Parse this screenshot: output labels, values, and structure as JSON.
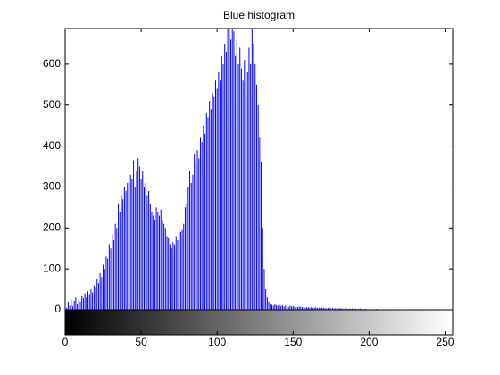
{
  "chart_data": {
    "type": "stem",
    "title": "Blue histogram",
    "color": "#0000ff",
    "x": [
      0,
      1,
      2,
      3,
      4,
      5,
      6,
      7,
      8,
      9,
      10,
      11,
      12,
      13,
      14,
      15,
      16,
      17,
      18,
      19,
      20,
      21,
      22,
      23,
      24,
      25,
      26,
      27,
      28,
      29,
      30,
      31,
      32,
      33,
      34,
      35,
      36,
      37,
      38,
      39,
      40,
      41,
      42,
      43,
      44,
      45,
      46,
      47,
      48,
      49,
      50,
      51,
      52,
      53,
      54,
      55,
      56,
      57,
      58,
      59,
      60,
      61,
      62,
      63,
      64,
      65,
      66,
      67,
      68,
      69,
      70,
      71,
      72,
      73,
      74,
      75,
      76,
      77,
      78,
      79,
      80,
      81,
      82,
      83,
      84,
      85,
      86,
      87,
      88,
      89,
      90,
      91,
      92,
      93,
      94,
      95,
      96,
      97,
      98,
      99,
      100,
      101,
      102,
      103,
      104,
      105,
      106,
      107,
      108,
      109,
      110,
      111,
      112,
      113,
      114,
      115,
      116,
      117,
      118,
      119,
      120,
      121,
      122,
      123,
      124,
      125,
      126,
      127,
      128,
      129,
      130,
      131,
      132,
      133,
      134,
      135,
      136,
      137,
      138,
      139,
      140,
      141,
      142,
      143,
      144,
      145,
      146,
      147,
      148,
      149,
      150,
      151,
      152,
      153,
      154,
      155,
      156,
      157,
      158,
      159,
      160,
      161,
      162,
      163,
      164,
      165,
      166,
      167,
      168,
      169,
      170,
      171,
      172,
      173,
      174,
      175,
      176,
      177,
      178,
      179,
      180,
      181,
      182,
      183,
      184,
      185,
      186,
      187,
      188,
      189,
      190,
      191,
      192,
      193,
      194,
      195,
      196,
      197,
      198,
      199,
      200,
      201,
      202,
      203,
      204,
      205,
      206,
      207,
      208,
      209,
      210,
      211,
      212,
      213,
      214,
      215,
      216,
      217,
      218,
      219,
      220,
      221,
      222,
      223,
      224,
      225,
      226,
      227,
      228,
      229,
      230,
      231,
      232,
      233,
      234,
      235,
      236,
      237,
      238,
      239,
      240,
      241,
      242,
      243,
      244,
      245,
      246,
      247,
      248,
      249,
      250,
      251,
      252,
      253,
      254,
      255
    ],
    "values": [
      28,
      5,
      20,
      10,
      25,
      8,
      22,
      30,
      15,
      25,
      20,
      35,
      28,
      40,
      30,
      45,
      38,
      50,
      42,
      60,
      55,
      75,
      65,
      90,
      80,
      110,
      100,
      130,
      125,
      160,
      150,
      185,
      170,
      210,
      200,
      260,
      240,
      280,
      270,
      300,
      290,
      310,
      300,
      330,
      320,
      365,
      300,
      340,
      370,
      350,
      320,
      340,
      300,
      310,
      280,
      290,
      260,
      240,
      230,
      220,
      250,
      240,
      230,
      245,
      220,
      210,
      200,
      180,
      175,
      160,
      150,
      165,
      160,
      180,
      170,
      200,
      190,
      195,
      210,
      250,
      260,
      300,
      340,
      310,
      330,
      380,
      360,
      390,
      370,
      420,
      410,
      450,
      430,
      480,
      470,
      510,
      490,
      530,
      520,
      560,
      540,
      580,
      560,
      620,
      600,
      650,
      630,
      700,
      690,
      660,
      700,
      680,
      620,
      660,
      600,
      640,
      590,
      560,
      610,
      520,
      580,
      640,
      600,
      700,
      650,
      600,
      550,
      500,
      420,
      360,
      200,
      100,
      50,
      30,
      20,
      15,
      12,
      10,
      14,
      11,
      10,
      12,
      9,
      11,
      8,
      10,
      9,
      7,
      10,
      8,
      9,
      7,
      8,
      6,
      8,
      7,
      6,
      7,
      5,
      6,
      6,
      5,
      6,
      4,
      5,
      6,
      4,
      5,
      4,
      5,
      4,
      5,
      3,
      4,
      5,
      3,
      4,
      3,
      4,
      3,
      3,
      4,
      3,
      2,
      3,
      4,
      2,
      3,
      2,
      3,
      2,
      3,
      2,
      2,
      3,
      2,
      1,
      2,
      2,
      1,
      1,
      2,
      1,
      1,
      1,
      2,
      1,
      0,
      1,
      1,
      1,
      0,
      1,
      1,
      0,
      1,
      0,
      1,
      0,
      1,
      0,
      1,
      0,
      0,
      1,
      0,
      0,
      1,
      0,
      0,
      0,
      0,
      1,
      0,
      0,
      0,
      1,
      0,
      0,
      0,
      0,
      0,
      0,
      1,
      0,
      0,
      0,
      0,
      0,
      0,
      0,
      0,
      0,
      0,
      0,
      0
    ],
    "xlim": [
      0,
      255
    ],
    "ylim": [
      0,
      687
    ],
    "xticks": [
      0,
      50,
      100,
      150,
      200,
      250
    ],
    "yticks": [
      0,
      100,
      200,
      300,
      400,
      500,
      600
    ]
  }
}
